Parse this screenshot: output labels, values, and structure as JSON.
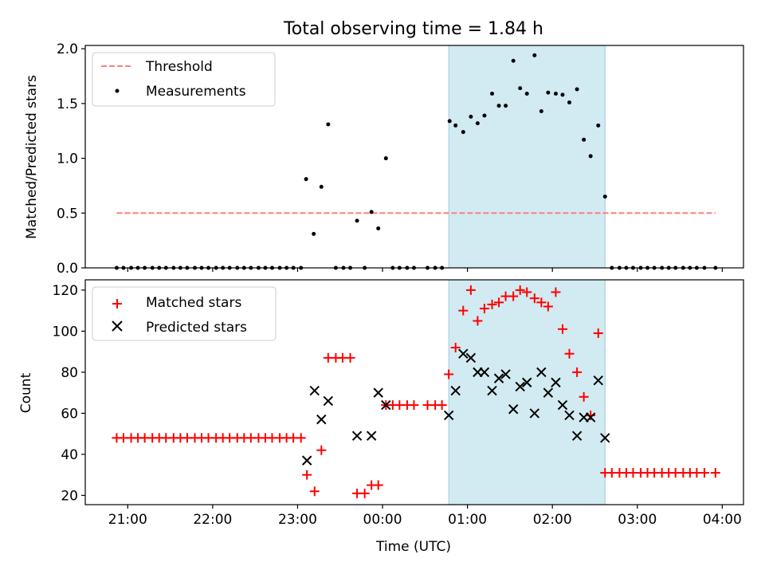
{
  "chart_data": [
    {
      "type": "scatter",
      "title": "Total observing time = 1.84 h",
      "xlabel": "",
      "ylabel": "Matched/Predicted stars",
      "xlim": [
        20.5,
        28.25
      ],
      "ylim": [
        0.0,
        2.03
      ],
      "yticks": [
        0.0,
        0.5,
        1.0,
        1.5,
        2.0
      ],
      "ytick_labels": [
        "0.0",
        "0.5",
        "1.0",
        "1.5",
        "2.0"
      ],
      "highlight_span": {
        "x0": 24.78,
        "x1": 26.62,
        "color": "#add8e6"
      },
      "legend": {
        "location": "upper left",
        "entries": [
          "Threshold",
          "Measurements"
        ]
      },
      "threshold": {
        "name": "Threshold",
        "y": 0.5,
        "x": [
          20.87,
          27.92
        ],
        "color": "#ff7f7f",
        "style": "dashed"
      },
      "series": [
        {
          "name": "Measurements",
          "marker": "dot",
          "color": "#000000",
          "x": [
            20.87,
            20.95,
            21.04,
            21.12,
            21.2,
            21.29,
            21.37,
            21.45,
            21.54,
            21.62,
            21.7,
            21.79,
            21.87,
            21.95,
            22.04,
            22.12,
            22.2,
            22.29,
            22.37,
            22.45,
            22.54,
            22.62,
            22.7,
            22.79,
            22.87,
            22.95,
            23.04,
            23.1,
            23.19,
            23.28,
            23.36,
            23.45,
            23.54,
            23.62,
            23.7,
            23.79,
            23.87,
            23.95,
            24.04,
            24.12,
            24.2,
            24.29,
            24.37,
            24.53,
            24.62,
            24.7,
            24.79,
            24.86,
            24.95,
            25.04,
            25.12,
            25.2,
            25.29,
            25.37,
            25.45,
            25.54,
            25.62,
            25.7,
            25.79,
            25.87,
            25.95,
            26.04,
            26.12,
            26.2,
            26.29,
            26.37,
            26.45,
            26.54,
            26.62,
            26.7,
            26.79,
            26.87,
            26.95,
            27.04,
            27.12,
            27.2,
            27.29,
            27.37,
            27.45,
            27.54,
            27.62,
            27.7,
            27.79,
            27.92
          ],
          "y": [
            0,
            0,
            0,
            0,
            0,
            0,
            0,
            0,
            0,
            0,
            0,
            0,
            0,
            0,
            0,
            0,
            0,
            0,
            0,
            0,
            0,
            0,
            0,
            0,
            0,
            0,
            0,
            0.81,
            0.31,
            0.74,
            1.31,
            0,
            0,
            0,
            0.43,
            0,
            0.51,
            0.36,
            1.0,
            0,
            0,
            0,
            0,
            0,
            0,
            0,
            1.34,
            1.3,
            1.24,
            1.38,
            1.32,
            1.39,
            1.59,
            1.48,
            1.48,
            1.89,
            1.64,
            1.59,
            1.94,
            1.43,
            1.6,
            1.59,
            1.58,
            1.51,
            1.63,
            1.17,
            1.02,
            1.3,
            0.65,
            0,
            0,
            0,
            0,
            0,
            0,
            0,
            0,
            0,
            0,
            0,
            0,
            0,
            0,
            0
          ]
        }
      ]
    },
    {
      "type": "scatter",
      "title": "",
      "xlabel": "Time (UTC)",
      "ylabel": "Count",
      "xlim": [
        20.5,
        28.25
      ],
      "ylim": [
        15.5,
        125
      ],
      "xticks": [
        21,
        22,
        23,
        24,
        25,
        26,
        27,
        28
      ],
      "xtick_labels": [
        "21:00",
        "22:00",
        "23:00",
        "00:00",
        "01:00",
        "02:00",
        "03:00",
        "04:00"
      ],
      "yticks": [
        20,
        40,
        60,
        80,
        100,
        120
      ],
      "ytick_labels": [
        "20",
        "40",
        "60",
        "80",
        "100",
        "120"
      ],
      "highlight_span": {
        "x0": 24.78,
        "x1": 26.62,
        "color": "#add8e6"
      },
      "legend": {
        "location": "upper left",
        "entries": [
          "Matched stars",
          "Predicted stars"
        ]
      },
      "series": [
        {
          "name": "Matched stars",
          "marker": "plus",
          "color": "#ff0000",
          "x": [
            20.87,
            20.95,
            21.04,
            21.12,
            21.2,
            21.29,
            21.37,
            21.45,
            21.54,
            21.62,
            21.7,
            21.79,
            21.87,
            21.95,
            22.04,
            22.12,
            22.2,
            22.29,
            22.37,
            22.45,
            22.54,
            22.62,
            22.7,
            22.79,
            22.87,
            22.95,
            23.04,
            23.11,
            23.2,
            23.28,
            23.36,
            23.45,
            23.53,
            23.62,
            23.7,
            23.79,
            23.87,
            23.95,
            24.04,
            24.12,
            24.2,
            24.29,
            24.37,
            24.53,
            24.62,
            24.7,
            24.78,
            24.86,
            24.95,
            25.04,
            25.12,
            25.2,
            25.29,
            25.37,
            25.45,
            25.54,
            25.62,
            25.7,
            25.79,
            25.87,
            25.95,
            26.04,
            26.12,
            26.2,
            26.29,
            26.37,
            26.45,
            26.54,
            26.62,
            26.7,
            26.79,
            26.87,
            26.95,
            27.04,
            27.12,
            27.2,
            27.29,
            27.37,
            27.45,
            27.54,
            27.62,
            27.7,
            27.79,
            27.92
          ],
          "y": [
            48,
            48,
            48,
            48,
            48,
            48,
            48,
            48,
            48,
            48,
            48,
            48,
            48,
            48,
            48,
            48,
            48,
            48,
            48,
            48,
            48,
            48,
            48,
            48,
            48,
            48,
            48,
            30,
            22,
            42,
            87,
            87,
            87,
            87,
            21,
            21,
            25,
            25,
            64,
            64,
            64,
            64,
            64,
            64,
            64,
            64,
            79,
            92,
            110,
            120,
            105,
            111,
            113,
            114,
            117,
            117,
            120,
            119,
            116,
            114,
            112,
            119,
            101,
            89,
            80,
            68,
            59,
            99,
            31,
            31,
            31,
            31,
            31,
            31,
            31,
            31,
            31,
            31,
            31,
            31,
            31,
            31,
            31,
            31
          ]
        },
        {
          "name": "Predicted stars",
          "marker": "x",
          "color": "#000000",
          "x": [
            23.11,
            23.2,
            23.28,
            23.36,
            23.7,
            23.87,
            23.95,
            24.04,
            24.78,
            24.86,
            24.95,
            25.04,
            25.12,
            25.2,
            25.29,
            25.37,
            25.45,
            25.54,
            25.62,
            25.7,
            25.79,
            25.87,
            25.95,
            26.04,
            26.12,
            26.2,
            26.29,
            26.37,
            26.45,
            26.54,
            26.62
          ],
          "y": [
            37,
            71,
            57,
            66,
            49,
            49,
            70,
            64,
            59,
            71,
            89,
            87,
            80,
            80,
            71,
            77,
            79,
            62,
            73,
            75,
            60,
            80,
            70,
            75,
            64,
            59,
            49,
            58,
            58,
            76,
            48
          ]
        }
      ]
    }
  ]
}
